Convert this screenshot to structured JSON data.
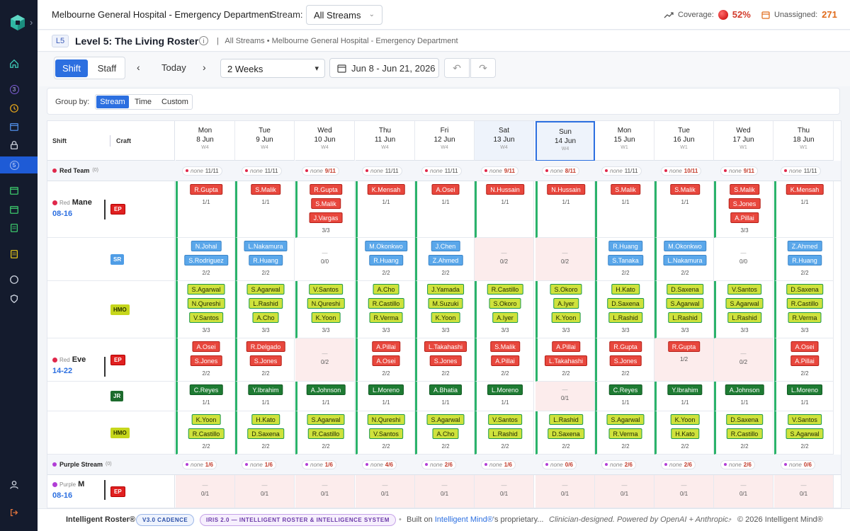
{
  "header": {
    "title": "Melbourne General Hospital - Emergency Department",
    "stream_label": "Stream:",
    "stream_value": "All Streams",
    "coverage_label": "Coverage:",
    "coverage_value": "52%",
    "unassigned_label": "Unassigned:",
    "unassigned_value": "271"
  },
  "level": {
    "badge": "L5",
    "title": "Level 5: The Living Roster",
    "breadcrumb": "All Streams • Melbourne General Hospital - Emergency Department"
  },
  "toolbar": {
    "shift_label": "Shift",
    "staff_label": "Staff",
    "today_label": "Today",
    "weeks_value": "2 Weeks",
    "date_range": "Jun 8 - Jun 21, 2026"
  },
  "groupby": {
    "label": "Group by:",
    "options": [
      "Stream",
      "Time",
      "Custom"
    ],
    "selected": "Stream"
  },
  "grid": {
    "col_shift": "Shift",
    "col_craft": "Craft",
    "days": [
      {
        "dn": "Mon",
        "dd": "8 Jun",
        "wk": "W4"
      },
      {
        "dn": "Tue",
        "dd": "9 Jun",
        "wk": "W4"
      },
      {
        "dn": "Wed",
        "dd": "10 Jun",
        "wk": "W4"
      },
      {
        "dn": "Thu",
        "dd": "11 Jun",
        "wk": "W4"
      },
      {
        "dn": "Fri",
        "dd": "12 Jun",
        "wk": "W4"
      },
      {
        "dn": "Sat",
        "dd": "13 Jun",
        "wk": "W4"
      },
      {
        "dn": "Sun",
        "dd": "14 Jun",
        "wk": "W4"
      },
      {
        "dn": "Mon",
        "dd": "15 Jun",
        "wk": "W1"
      },
      {
        "dn": "Tue",
        "dd": "16 Jun",
        "wk": "W1"
      },
      {
        "dn": "Wed",
        "dd": "17 Jun",
        "wk": "W1"
      },
      {
        "dn": "Thu",
        "dd": "18 Jun",
        "wk": "W1"
      }
    ],
    "groups": [
      {
        "name": "Red Team",
        "count": "(0)",
        "color": "#e0284b",
        "pills": [
          "11/11",
          "11/11",
          "9/11",
          "11/11",
          "11/11",
          "9/11",
          "8/11",
          "11/11",
          "10/11",
          "9/11",
          "11/11"
        ],
        "pill_none": "none"
      },
      {
        "name": "Purple Stream",
        "count": "(0)",
        "color": "#b13ed6",
        "pills": [
          "1/6",
          "1/6",
          "1/6",
          "4/6",
          "2/6",
          "1/6",
          "0/6",
          "2/6",
          "2/6",
          "2/6",
          "0/6"
        ],
        "pill_none": "none"
      }
    ],
    "shifts": [
      {
        "tag": "Red",
        "name": "Mane",
        "time": "08-16"
      },
      {
        "tag": "Red",
        "name": "Eve",
        "time": "14-22"
      },
      {
        "tag": "Purple",
        "name": "M",
        "time": "08-16"
      }
    ],
    "crafts": [
      "EP",
      "SR",
      "HMO",
      "EP",
      "JR",
      "HMO",
      "EP"
    ],
    "lanes": [
      {
        "craft": "ep",
        "cells": [
          {
            "n": [
              "R.Gupta"
            ],
            "r": "1/1"
          },
          {
            "n": [
              "S.Malik"
            ],
            "r": "1/1"
          },
          {
            "n": [
              "R.Gupta",
              "S.Malik",
              "J.Vargas"
            ],
            "r": "3/3"
          },
          {
            "n": [
              "K.Mensah"
            ],
            "r": "1/1"
          },
          {
            "n": [
              "A.Osei"
            ],
            "r": "1/1"
          },
          {
            "n": [
              "N.Hussain"
            ],
            "r": "1/1"
          },
          {
            "n": [
              "N.Hussain"
            ],
            "r": "1/1"
          },
          {
            "n": [
              "S.Malik"
            ],
            "r": "1/1"
          },
          {
            "n": [
              "S.Malik"
            ],
            "r": "1/1"
          },
          {
            "n": [
              "S.Malik",
              "S.Jones",
              "A.Pillai"
            ],
            "r": "3/3"
          },
          {
            "n": [
              "K.Mensah"
            ],
            "r": "1/1"
          }
        ]
      },
      {
        "craft": "sr",
        "cells": [
          {
            "n": [
              "N.Johal",
              "S.Rodriguez"
            ],
            "r": "2/2"
          },
          {
            "n": [
              "L.Nakamura",
              "R.Huang"
            ],
            "r": "2/2"
          },
          {
            "n": [],
            "r": "0/0"
          },
          {
            "n": [
              "M.Okonkwo",
              "R.Huang"
            ],
            "r": "2/2"
          },
          {
            "n": [
              "J.Chen",
              "Z.Ahmed"
            ],
            "r": "2/2"
          },
          {
            "n": [],
            "r": "0/2",
            "e": true
          },
          {
            "n": [],
            "r": "0/2",
            "e": true
          },
          {
            "n": [
              "R.Huang",
              "S.Tanaka"
            ],
            "r": "2/2"
          },
          {
            "n": [
              "M.Okonkwo",
              "L.Nakamura"
            ],
            "r": "2/2"
          },
          {
            "n": [],
            "r": "0/0"
          },
          {
            "n": [
              "Z.Ahmed",
              "R.Huang"
            ],
            "r": "2/2"
          }
        ]
      },
      {
        "craft": "hmo",
        "cells": [
          {
            "n": [
              "S.Agarwal",
              "N.Qureshi",
              "V.Santos"
            ],
            "r": "3/3"
          },
          {
            "n": [
              "S.Agarwal",
              "L.Rashid",
              "A.Cho"
            ],
            "r": "3/3"
          },
          {
            "n": [
              "V.Santos",
              "N.Qureshi",
              "K.Yoon"
            ],
            "r": "3/3"
          },
          {
            "n": [
              "A.Cho",
              "R.Castillo",
              "R.Verma"
            ],
            "r": "3/3"
          },
          {
            "n": [
              "J.Yamada",
              "M.Suzuki",
              "K.Yoon"
            ],
            "r": "3/3"
          },
          {
            "n": [
              "R.Castillo",
              "S.Okoro",
              "A.Iyer"
            ],
            "r": "3/3"
          },
          {
            "n": [
              "S.Okoro",
              "A.Iyer",
              "K.Yoon"
            ],
            "r": "3/3"
          },
          {
            "n": [
              "H.Kato",
              "D.Saxena",
              "L.Rashid"
            ],
            "r": "3/3"
          },
          {
            "n": [
              "D.Saxena",
              "S.Agarwal",
              "L.Rashid"
            ],
            "r": "3/3"
          },
          {
            "n": [
              "V.Santos",
              "S.Agarwal",
              "L.Rashid"
            ],
            "r": "3/3"
          },
          {
            "n": [
              "D.Saxena",
              "R.Castillo",
              "R.Verma"
            ],
            "r": "3/3"
          }
        ]
      },
      {
        "craft": "ep",
        "cells": [
          {
            "n": [
              "A.Osei",
              "S.Jones"
            ],
            "r": "2/2"
          },
          {
            "n": [
              "R.Delgado",
              "S.Jones"
            ],
            "r": "2/2"
          },
          {
            "n": [],
            "r": "0/2",
            "e": true
          },
          {
            "n": [
              "A.Pillai",
              "A.Osei"
            ],
            "r": "2/2"
          },
          {
            "n": [
              "L.Takahashi",
              "S.Jones"
            ],
            "r": "2/2"
          },
          {
            "n": [
              "S.Malik",
              "A.Pillai"
            ],
            "r": "2/2"
          },
          {
            "n": [
              "A.Pillai",
              "L.Takahashi"
            ],
            "r": "2/2"
          },
          {
            "n": [
              "R.Gupta",
              "S.Jones"
            ],
            "r": "2/2"
          },
          {
            "n": [
              "R.Gupta"
            ],
            "r": "1/2",
            "e": true
          },
          {
            "n": [],
            "r": "0/2",
            "e": true
          },
          {
            "n": [
              "A.Osei",
              "A.Pillai"
            ],
            "r": "2/2"
          }
        ]
      },
      {
        "craft": "jr",
        "cells": [
          {
            "n": [
              "C.Reyes"
            ],
            "r": "1/1"
          },
          {
            "n": [
              "Y.Ibrahim"
            ],
            "r": "1/1"
          },
          {
            "n": [
              "A.Johnson"
            ],
            "r": "1/1"
          },
          {
            "n": [
              "L.Moreno"
            ],
            "r": "1/1"
          },
          {
            "n": [
              "A.Bhatia"
            ],
            "r": "1/1"
          },
          {
            "n": [
              "L.Moreno"
            ],
            "r": "1/1"
          },
          {
            "n": [],
            "r": "0/1",
            "e": true
          },
          {
            "n": [
              "C.Reyes"
            ],
            "r": "1/1"
          },
          {
            "n": [
              "Y.Ibrahim"
            ],
            "r": "1/1"
          },
          {
            "n": [
              "A.Johnson"
            ],
            "r": "1/1"
          },
          {
            "n": [
              "L.Moreno"
            ],
            "r": "1/1"
          }
        ]
      },
      {
        "craft": "hmo",
        "cells": [
          {
            "n": [
              "K.Yoon",
              "R.Castillo"
            ],
            "r": "2/2"
          },
          {
            "n": [
              "H.Kato",
              "D.Saxena"
            ],
            "r": "2/2"
          },
          {
            "n": [
              "S.Agarwal",
              "R.Castillo"
            ],
            "r": "2/2"
          },
          {
            "n": [
              "N.Qureshi",
              "V.Santos"
            ],
            "r": "2/2"
          },
          {
            "n": [
              "S.Agarwal",
              "A.Cho"
            ],
            "r": "2/2"
          },
          {
            "n": [
              "V.Santos",
              "L.Rashid"
            ],
            "r": "2/2"
          },
          {
            "n": [
              "L.Rashid",
              "D.Saxena"
            ],
            "r": "2/2"
          },
          {
            "n": [
              "S.Agarwal",
              "R.Verma"
            ],
            "r": "2/2"
          },
          {
            "n": [
              "K.Yoon",
              "H.Kato"
            ],
            "r": "2/2"
          },
          {
            "n": [
              "D.Saxena",
              "R.Castillo"
            ],
            "r": "2/2"
          },
          {
            "n": [
              "V.Santos",
              "S.Agarwal"
            ],
            "r": "2/2"
          }
        ]
      },
      {
        "craft": "ep",
        "cells": [
          {
            "n": [],
            "r": "0/1",
            "e": true
          },
          {
            "n": [],
            "r": "0/1",
            "e": true
          },
          {
            "n": [],
            "r": "0/1",
            "e": true
          },
          {
            "n": [],
            "r": "0/1",
            "e": true
          },
          {
            "n": [],
            "r": "0/1",
            "e": true
          },
          {
            "n": [],
            "r": "0/1",
            "e": true
          },
          {
            "n": [],
            "r": "0/1",
            "e": true
          },
          {
            "n": [],
            "r": "0/1",
            "e": true
          },
          {
            "n": [],
            "r": "0/1",
            "e": true
          },
          {
            "n": [],
            "r": "0/1",
            "e": true
          },
          {
            "n": [],
            "r": "0/1",
            "e": true
          }
        ]
      }
    ]
  },
  "footer": {
    "brand": "Intelligent Roster®",
    "badge1": "V3.0 CADENCE",
    "badge2": "IRIS 2.0 — INTELLIGENT ROSTER & INTELLIGENCE SYSTEM",
    "built_prefix": "Built on ",
    "built_link": "Intelligent Mind®",
    "built_suffix": "'s proprietary...",
    "clinician": "Clinician-designed. Powered by OpenAI + Anthropic.",
    "copyright": "© 2026 Intelligent Mind®"
  },
  "icons": {
    "sidebar": [
      "logo-icon",
      "home-icon",
      "badge-3-icon",
      "clock-icon",
      "calendar-icon",
      "lock-icon",
      "badge-5-icon",
      "calendar-check-icon",
      "calendar-icon",
      "clipboard-icon",
      "note-icon",
      "chat-icon",
      "shield-icon",
      "user-icon",
      "logout-icon"
    ],
    "coverage_dot_color": "#d40000",
    "accent": "#2c6fe0"
  }
}
